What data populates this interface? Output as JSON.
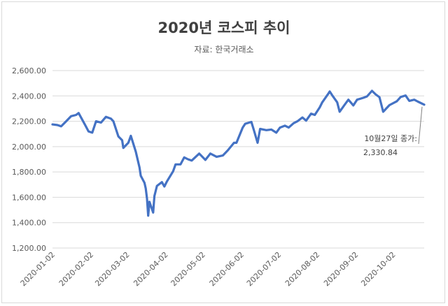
{
  "chart_data": {
    "type": "line",
    "title": "2020년 코스피 추이",
    "subtitle": "자료: 한국거래소",
    "xlabel": "",
    "ylabel": "",
    "ylim": [
      1200,
      2600
    ],
    "yticks": [
      "1,200.00",
      "1,400.00",
      "1,600.00",
      "1,800.00",
      "2,000.00",
      "2,200.00",
      "2,400.00",
      "2,600.00"
    ],
    "xticks": [
      "2020-01-02",
      "2020-02-02",
      "2020-03-02",
      "2020-04-02",
      "2020-05-02",
      "2020-06-02",
      "2020-07-02",
      "2020-08-02",
      "2020-09-02",
      "2020-10-02"
    ],
    "grid": true,
    "line_color": "#4472c4",
    "series": [
      {
        "points": [
          [
            "2020-01-02",
            2175
          ],
          [
            "2020-01-06",
            2170
          ],
          [
            "2020-01-09",
            2160
          ],
          [
            "2020-01-13",
            2200
          ],
          [
            "2020-01-17",
            2240
          ],
          [
            "2020-01-21",
            2250
          ],
          [
            "2020-01-23",
            2265
          ],
          [
            "2020-01-28",
            2175
          ],
          [
            "2020-01-31",
            2120
          ],
          [
            "2020-02-03",
            2110
          ],
          [
            "2020-02-06",
            2200
          ],
          [
            "2020-02-10",
            2190
          ],
          [
            "2020-02-14",
            2235
          ],
          [
            "2020-02-18",
            2220
          ],
          [
            "2020-02-20",
            2200
          ],
          [
            "2020-02-24",
            2080
          ],
          [
            "2020-02-27",
            2050
          ],
          [
            "2020-02-28",
            1990
          ],
          [
            "2020-03-03",
            2030
          ],
          [
            "2020-03-05",
            2085
          ],
          [
            "2020-03-09",
            1960
          ],
          [
            "2020-03-12",
            1835
          ],
          [
            "2020-03-13",
            1770
          ],
          [
            "2020-03-16",
            1715
          ],
          [
            "2020-03-17",
            1670
          ],
          [
            "2020-03-18",
            1590
          ],
          [
            "2020-03-19",
            1455
          ],
          [
            "2020-03-20",
            1565
          ],
          [
            "2020-03-23",
            1480
          ],
          [
            "2020-03-24",
            1610
          ],
          [
            "2020-03-26",
            1690
          ],
          [
            "2020-03-30",
            1720
          ],
          [
            "2020-04-01",
            1685
          ],
          [
            "2020-04-03",
            1725
          ],
          [
            "2020-04-08",
            1805
          ],
          [
            "2020-04-10",
            1860
          ],
          [
            "2020-04-14",
            1860
          ],
          [
            "2020-04-17",
            1915
          ],
          [
            "2020-04-20",
            1900
          ],
          [
            "2020-04-23",
            1890
          ],
          [
            "2020-04-29",
            1945
          ],
          [
            "2020-05-04",
            1895
          ],
          [
            "2020-05-08",
            1945
          ],
          [
            "2020-05-13",
            1920
          ],
          [
            "2020-05-18",
            1930
          ],
          [
            "2020-05-22",
            1970
          ],
          [
            "2020-05-27",
            2030
          ],
          [
            "2020-05-29",
            2030
          ],
          [
            "2020-06-03",
            2150
          ],
          [
            "2020-06-05",
            2180
          ],
          [
            "2020-06-10",
            2195
          ],
          [
            "2020-06-12",
            2130
          ],
          [
            "2020-06-15",
            2030
          ],
          [
            "2020-06-17",
            2140
          ],
          [
            "2020-06-22",
            2130
          ],
          [
            "2020-06-26",
            2135
          ],
          [
            "2020-06-30",
            2110
          ],
          [
            "2020-07-03",
            2150
          ],
          [
            "2020-07-07",
            2165
          ],
          [
            "2020-07-10",
            2150
          ],
          [
            "2020-07-14",
            2185
          ],
          [
            "2020-07-17",
            2200
          ],
          [
            "2020-07-21",
            2230
          ],
          [
            "2020-07-24",
            2205
          ],
          [
            "2020-07-28",
            2260
          ],
          [
            "2020-07-31",
            2250
          ],
          [
            "2020-08-04",
            2310
          ],
          [
            "2020-08-06",
            2350
          ],
          [
            "2020-08-11",
            2420
          ],
          [
            "2020-08-12",
            2435
          ],
          [
            "2020-08-14",
            2405
          ],
          [
            "2020-08-18",
            2350
          ],
          [
            "2020-08-20",
            2275
          ],
          [
            "2020-08-24",
            2330
          ],
          [
            "2020-08-27",
            2370
          ],
          [
            "2020-08-31",
            2325
          ],
          [
            "2020-09-03",
            2370
          ],
          [
            "2020-09-08",
            2385
          ],
          [
            "2020-09-11",
            2396
          ],
          [
            "2020-09-15",
            2440
          ],
          [
            "2020-09-18",
            2412
          ],
          [
            "2020-09-21",
            2390
          ],
          [
            "2020-09-24",
            2275
          ],
          [
            "2020-09-29",
            2327
          ],
          [
            "2020-10-05",
            2358
          ],
          [
            "2020-10-08",
            2391
          ],
          [
            "2020-10-12",
            2403
          ],
          [
            "2020-10-15",
            2361
          ],
          [
            "2020-10-19",
            2370
          ],
          [
            "2020-10-22",
            2355
          ],
          [
            "2020-10-27",
            2330.84
          ]
        ]
      }
    ],
    "annotation": {
      "label": "10월27일 종가:",
      "value": "2,330.84"
    }
  }
}
